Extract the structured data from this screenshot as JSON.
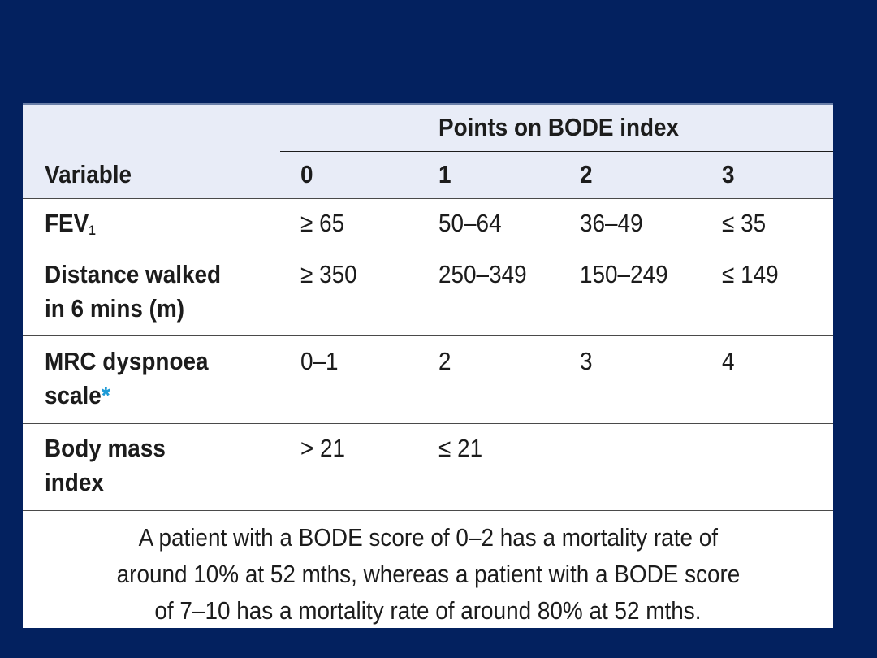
{
  "table": {
    "group_header": "Points on BODE index",
    "columns": [
      "Variable",
      "0",
      "1",
      "2",
      "3"
    ],
    "rows": [
      {
        "label": "FEV",
        "label_sub": "1",
        "cells": [
          "≥ 65",
          "50–64",
          "36–49",
          "≤ 35"
        ]
      },
      {
        "label_line1": "Distance walked",
        "label_line2": "in 6 mins (m)",
        "cells": [
          "≥ 350",
          "250–349",
          "150–249",
          "≤ 149"
        ]
      },
      {
        "label_line1": "MRC dyspnoea",
        "label_line2": "scale",
        "label_mark": "*",
        "cells": [
          "0–1",
          "2",
          "3",
          "4"
        ]
      },
      {
        "label_line1": "Body mass",
        "label_line2": "index",
        "cells": [
          "> 21",
          "≤ 21",
          "",
          ""
        ]
      }
    ],
    "footnote": {
      "line1": "A patient with a BODE score of 0–2 has a mortality rate of",
      "line2": "around 10% at 52 mths, whereas a patient with a BODE score",
      "line3": "of 7–10 has a mortality rate of around 80% at 52 mths."
    }
  },
  "colors": {
    "slide_background": "#03215f",
    "header_band": "#e8ecf7",
    "asterisk": "#1f9bd6"
  }
}
